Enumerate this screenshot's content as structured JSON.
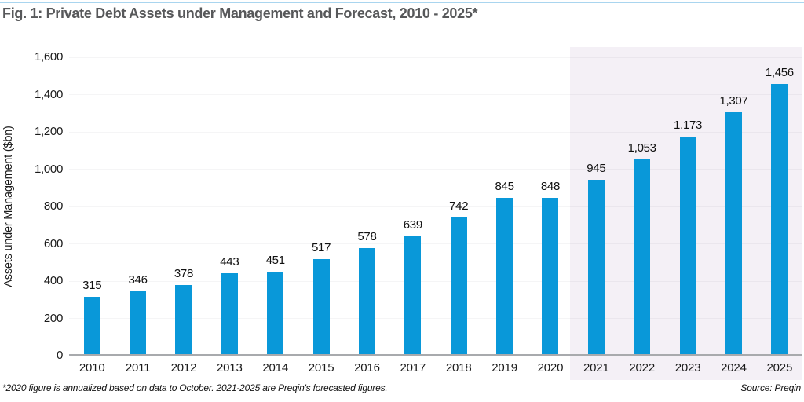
{
  "page": {
    "title": "Fig. 1: Private Debt Assets under Management and Forecast, 2010 - 2025*",
    "footnote": "*2020 figure is annualized based on data to October. 2021-2025 are Preqin's forecasted figures.",
    "source": "Source: Preqin"
  },
  "colors": {
    "bar": "#0998d9",
    "forecast_band": "#f4f0f6",
    "top_rule": "#a9d5ef",
    "axis_line": "#a8aaad",
    "title_text": "#57585a",
    "label_text": "#1a1a1a"
  },
  "chart_data": {
    "type": "bar",
    "title": "Fig. 1: Private Debt Assets under Management and Forecast, 2010 - 2025*",
    "xlabel": "",
    "ylabel": "Assets under Management ($bn)",
    "categories": [
      "2010",
      "2011",
      "2012",
      "2013",
      "2014",
      "2015",
      "2016",
      "2017",
      "2018",
      "2019",
      "2020",
      "2021",
      "2022",
      "2023",
      "2024",
      "2025"
    ],
    "values": [
      315,
      346,
      378,
      443,
      451,
      517,
      578,
      639,
      742,
      845,
      848,
      945,
      1053,
      1173,
      1307,
      1456
    ],
    "value_labels": [
      "315",
      "346",
      "378",
      "443",
      "451",
      "517",
      "578",
      "639",
      "742",
      "845",
      "848",
      "945",
      "1,053",
      "1,173",
      "1,307",
      "1,456"
    ],
    "ylim": [
      0,
      1600
    ],
    "ytick_interval": 200,
    "ytick_labels": [
      "0",
      "200",
      "400",
      "600",
      "800",
      "1,000",
      "1,200",
      "1,400",
      "1,600"
    ],
    "grid": true,
    "legend": "none",
    "forecast_categories": [
      "2021",
      "2022",
      "2023",
      "2024",
      "2025"
    ],
    "forecast_band_shaded": true
  }
}
